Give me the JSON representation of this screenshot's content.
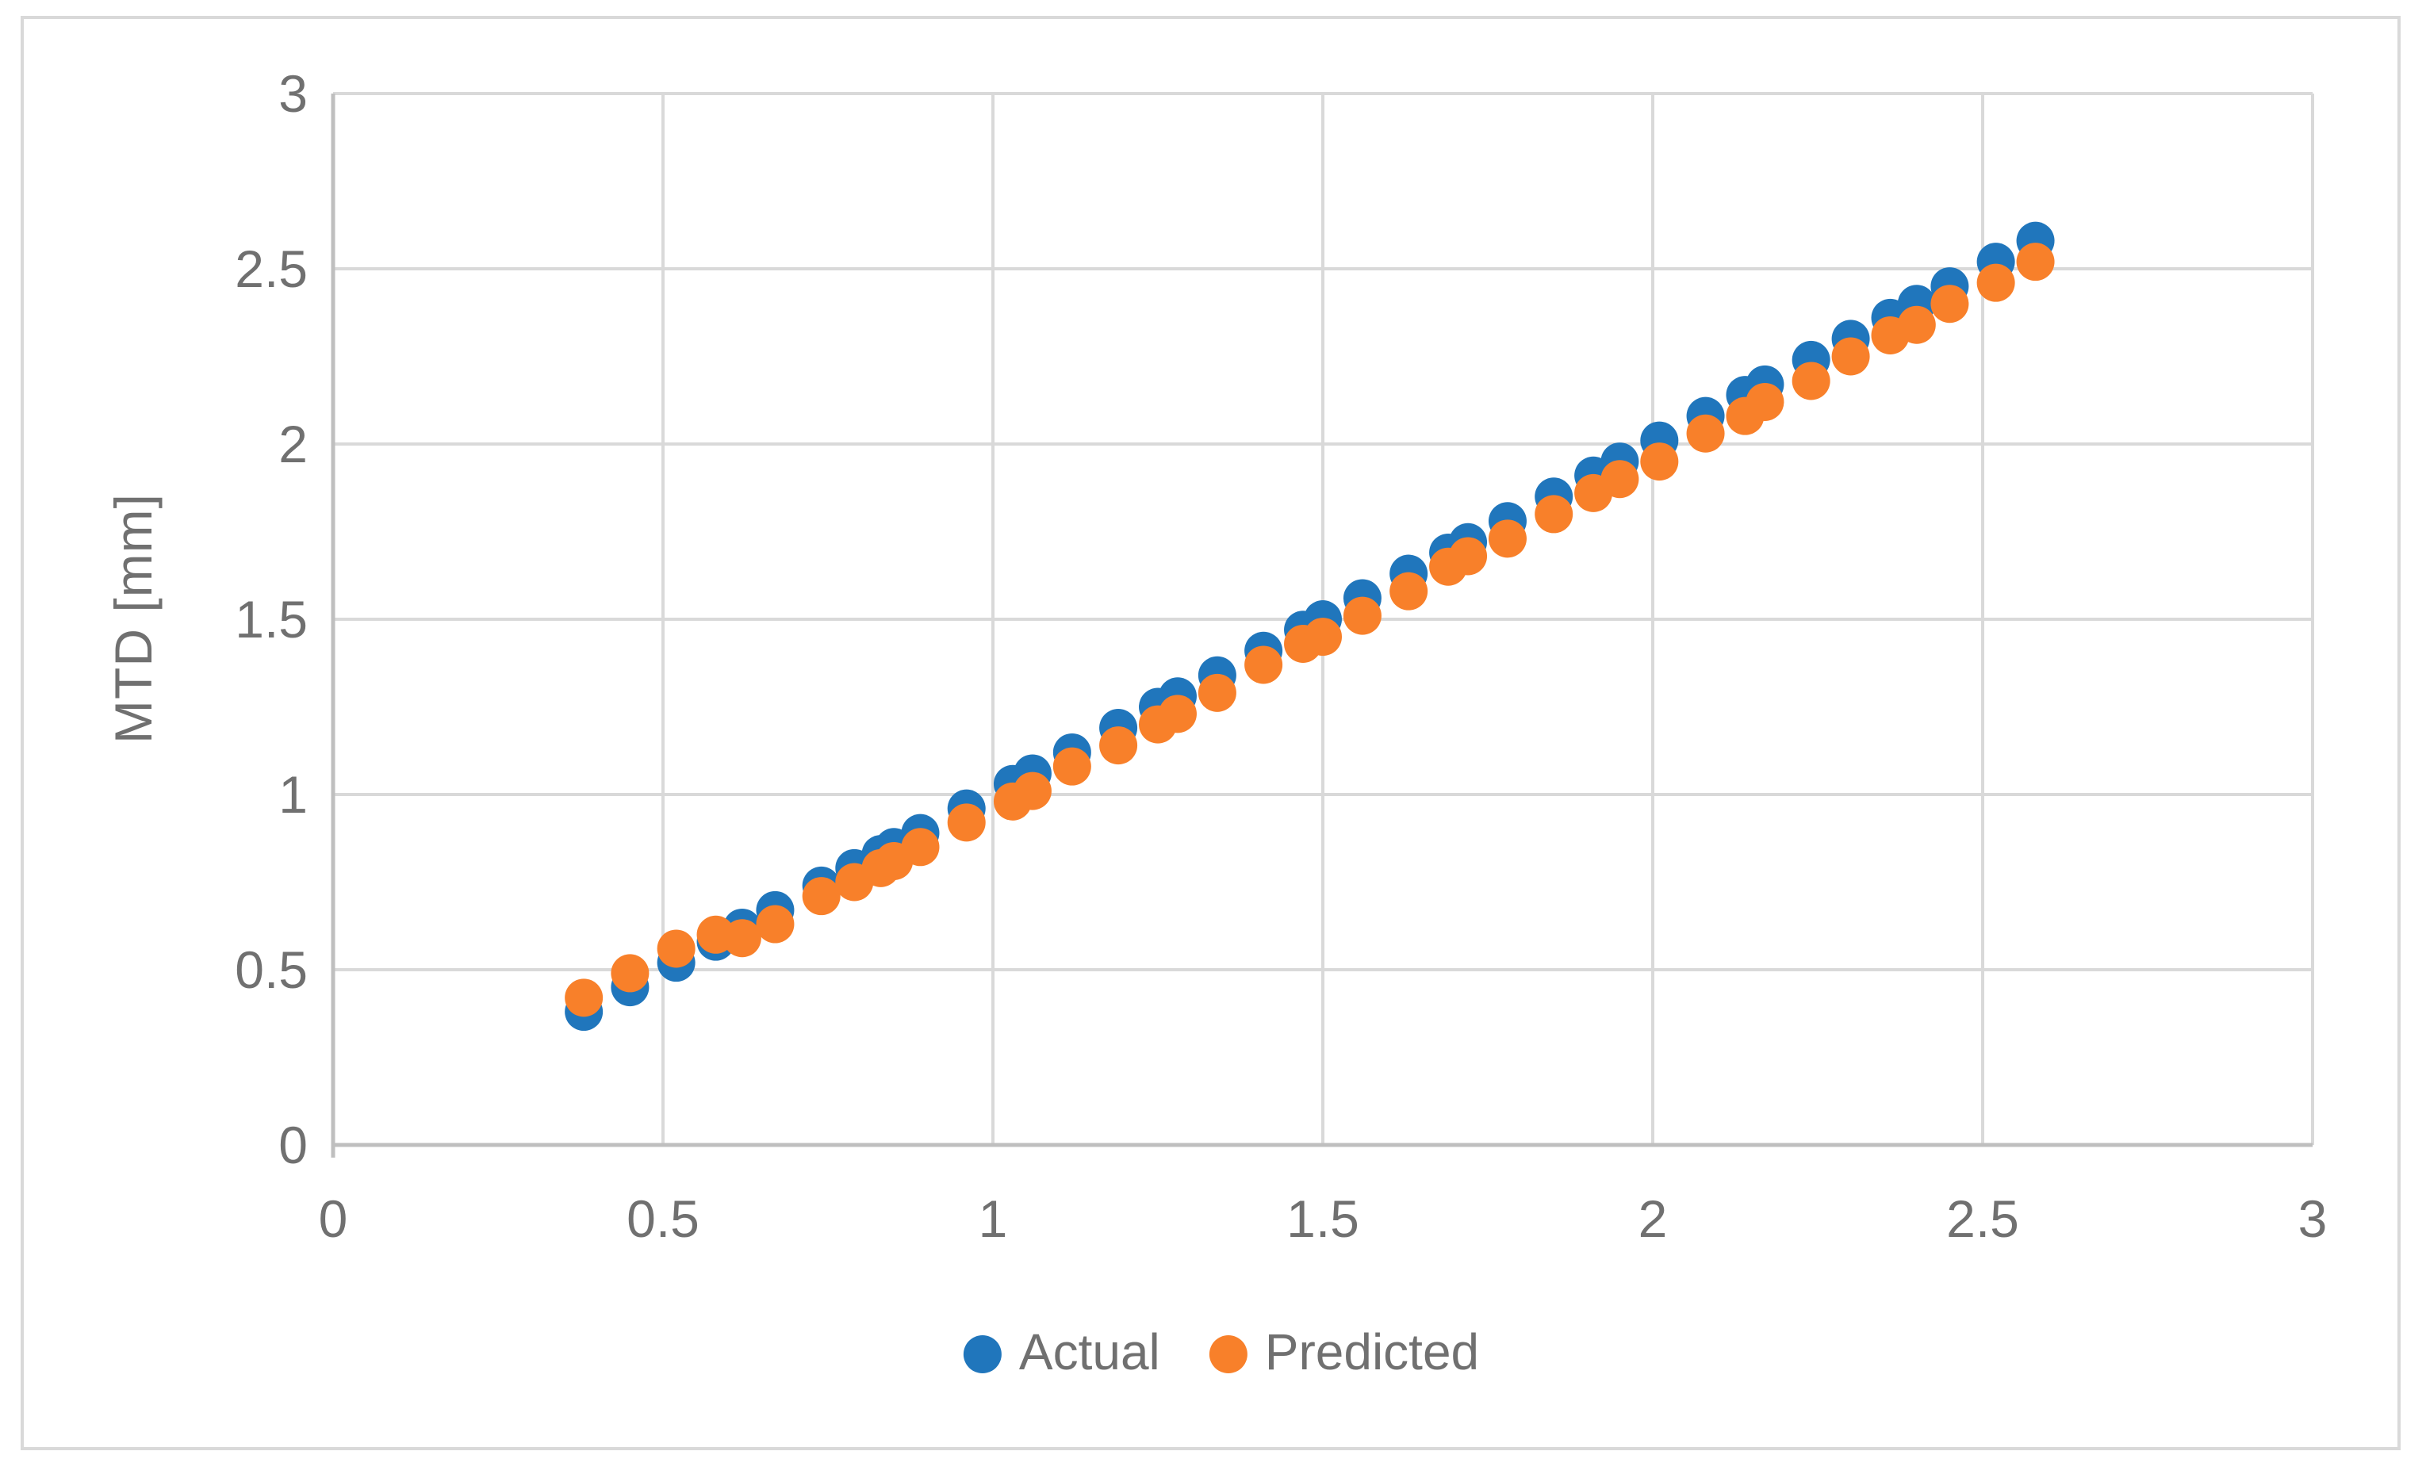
{
  "chart_data": {
    "type": "scatter",
    "title": "",
    "xlabel": "",
    "ylabel": "MTD [mm]",
    "xlim": [
      0,
      3
    ],
    "ylim": [
      0,
      3
    ],
    "xticks": [
      0,
      0.5,
      1,
      1.5,
      2,
      2.5,
      3
    ],
    "yticks": [
      0,
      0.5,
      1,
      1.5,
      2,
      2.5,
      3
    ],
    "xtick_labels": [
      "0",
      "0.5",
      "1",
      "1.5",
      "2",
      "2.5",
      "3"
    ],
    "ytick_labels": [
      "0",
      "0.5",
      "1",
      "1.5",
      "2",
      "2.5",
      "3"
    ],
    "grid": true,
    "legend_position": "bottom",
    "x": [
      0.38,
      0.45,
      0.52,
      0.58,
      0.62,
      0.67,
      0.74,
      0.79,
      0.83,
      0.85,
      0.89,
      0.96,
      1.03,
      1.06,
      1.12,
      1.19,
      1.25,
      1.28,
      1.34,
      1.41,
      1.47,
      1.5,
      1.56,
      1.63,
      1.69,
      1.72,
      1.78,
      1.85,
      1.91,
      1.95,
      2.01,
      2.08,
      2.14,
      2.17,
      2.24,
      2.3,
      2.36,
      2.4,
      2.45,
      2.52,
      2.58
    ],
    "series": [
      {
        "name": "Actual",
        "color": "#2076BC",
        "y": [
          0.38,
          0.45,
          0.52,
          0.58,
          0.62,
          0.67,
          0.74,
          0.79,
          0.83,
          0.85,
          0.89,
          0.96,
          1.03,
          1.06,
          1.12,
          1.19,
          1.25,
          1.28,
          1.34,
          1.41,
          1.47,
          1.5,
          1.56,
          1.63,
          1.69,
          1.72,
          1.78,
          1.85,
          1.91,
          1.95,
          2.01,
          2.08,
          2.14,
          2.17,
          2.24,
          2.3,
          2.36,
          2.4,
          2.45,
          2.52,
          2.58
        ]
      },
      {
        "name": "Predicted",
        "color": "#F8802A",
        "y": [
          0.42,
          0.49,
          0.56,
          0.6,
          0.59,
          0.63,
          0.71,
          0.75,
          0.79,
          0.81,
          0.85,
          0.92,
          0.98,
          1.01,
          1.08,
          1.14,
          1.2,
          1.23,
          1.29,
          1.37,
          1.43,
          1.45,
          1.51,
          1.58,
          1.65,
          1.68,
          1.73,
          1.8,
          1.86,
          1.9,
          1.95,
          2.03,
          2.08,
          2.12,
          2.18,
          2.25,
          2.31,
          2.34,
          2.4,
          2.46,
          2.52
        ]
      }
    ]
  },
  "legend": {
    "items": [
      {
        "label": "Actual",
        "color": "#2076BC"
      },
      {
        "label": "Predicted",
        "color": "#F8802A"
      }
    ]
  },
  "style": {
    "gridline_color": "#D9D9D9",
    "axis_color": "#BFBFBF",
    "tick_label_color": "#707070",
    "frame_color": "#D9D9D9",
    "background_color": "#FFFFFF"
  }
}
